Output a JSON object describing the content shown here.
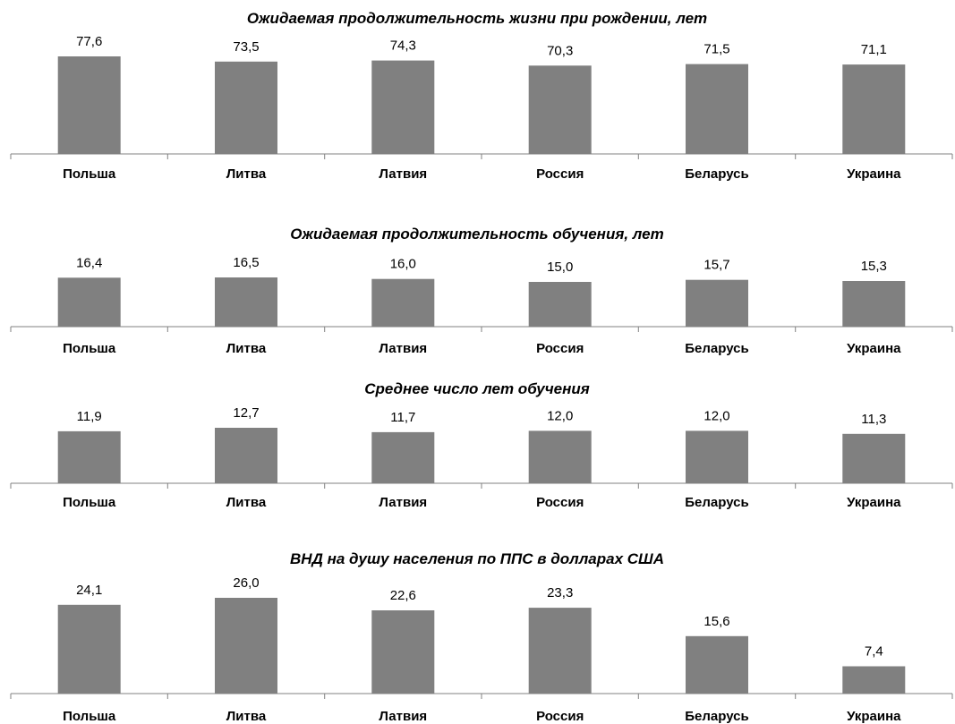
{
  "chart_data": [
    {
      "type": "bar",
      "title": "Ожидаемая продолжительность жизни при рождении, лет",
      "categories": [
        "Польша",
        "Литва",
        "Латвия",
        "Россия",
        "Беларусь",
        "Украина"
      ],
      "values": [
        77.6,
        73.5,
        74.3,
        70.3,
        71.5,
        71.1
      ],
      "value_labels": [
        "77,6",
        "73,5",
        "74,3",
        "70,3",
        "71,5",
        "71,1"
      ],
      "ylim": [
        0,
        80
      ],
      "bar_color": "#808080",
      "grid": false
    },
    {
      "type": "bar",
      "title": "Ожидаемая продолжительность обучения, лет",
      "categories": [
        "Польша",
        "Литва",
        "Латвия",
        "Россия",
        "Беларусь",
        "Украина"
      ],
      "values": [
        16.4,
        16.5,
        16.0,
        15.0,
        15.7,
        15.3
      ],
      "value_labels": [
        "16,4",
        "16,5",
        "16,0",
        "15,0",
        "15,7",
        "15,3"
      ],
      "ylim": [
        0,
        18
      ],
      "bar_color": "#808080",
      "grid": false
    },
    {
      "type": "bar",
      "title": "Среднее число лет обучения",
      "categories": [
        "Польша",
        "Литва",
        "Латвия",
        "Россия",
        "Беларусь",
        "Украина"
      ],
      "values": [
        11.9,
        12.7,
        11.7,
        12.0,
        12.0,
        11.3
      ],
      "value_labels": [
        "11,9",
        "12,7",
        "11,7",
        "12,0",
        "12,0",
        "11,3"
      ],
      "ylim": [
        0,
        13
      ],
      "bar_color": "#808080",
      "grid": false
    },
    {
      "type": "bar",
      "title": "ВНД на душу населения по ППС в долларах США",
      "categories": [
        "Польша",
        "Литва",
        "Латвия",
        "Россия",
        "Беларусь",
        "Украина"
      ],
      "values": [
        24.1,
        26.0,
        22.6,
        23.3,
        15.6,
        7.4
      ],
      "value_labels": [
        "24,1",
        "26,0",
        "22,6",
        "23,3",
        "15,6",
        "7,4"
      ],
      "ylim": [
        0,
        28
      ],
      "bar_color": "#808080",
      "grid": false
    }
  ]
}
